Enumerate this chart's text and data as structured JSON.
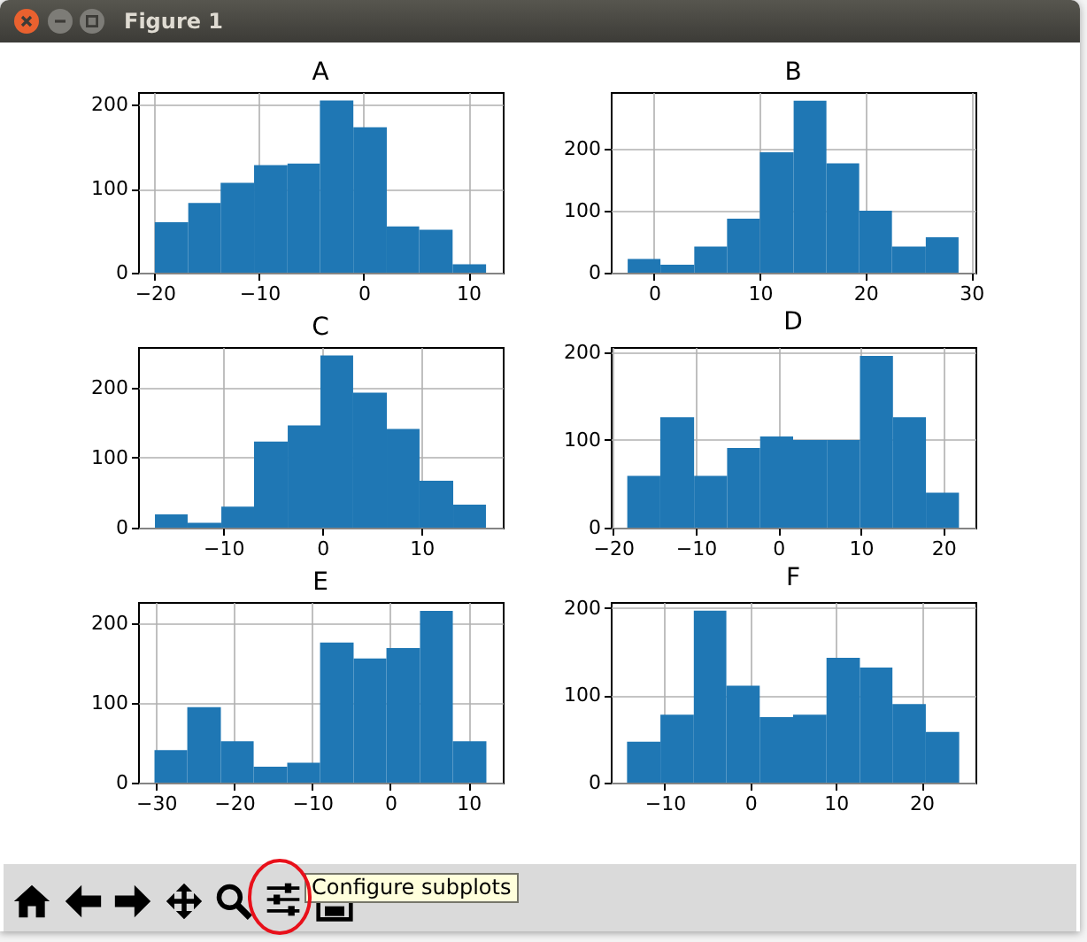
{
  "chart_data": [
    {
      "type": "histogram",
      "title": "A",
      "bins": [
        -20,
        -16.8,
        -13.7,
        -10.5,
        -7.3,
        -4.2,
        -1.0,
        2.2,
        5.3,
        8.5,
        11.7
      ],
      "values": [
        60,
        83,
        107,
        128,
        130,
        205,
        173,
        55,
        51,
        10
      ],
      "color": "#1f77b4",
      "xlim": [
        -21.6,
        13.3
      ],
      "ylim": [
        0,
        215
      ],
      "xticks": [
        {
          "value": -20,
          "label": "−20"
        },
        {
          "value": -10,
          "label": "−10"
        },
        0,
        10
      ],
      "yticks": [
        0,
        100,
        200
      ],
      "grid": true
    },
    {
      "type": "histogram",
      "title": "B",
      "bins": [
        -2.5,
        0.6,
        3.8,
        6.9,
        10.0,
        13.2,
        16.3,
        19.4,
        22.5,
        25.7,
        28.8
      ],
      "values": [
        22,
        13,
        42,
        87,
        194,
        277,
        176,
        100,
        42,
        57
      ],
      "color": "#1f77b4",
      "xlim": [
        -4.1,
        30.4
      ],
      "ylim": [
        0,
        291
      ],
      "xticks": [
        0,
        10,
        20,
        30
      ],
      "yticks": [
        0,
        100,
        200
      ],
      "grid": true
    },
    {
      "type": "histogram",
      "title": "C",
      "bins": [
        -16.9,
        -13.6,
        -10.2,
        -6.9,
        -3.5,
        -0.2,
        3.1,
        6.5,
        9.8,
        13.2,
        16.5
      ],
      "values": [
        19,
        7,
        30,
        123,
        146,
        246,
        193,
        141,
        67,
        33
      ],
      "color": "#1f77b4",
      "xlim": [
        -18.6,
        18.2
      ],
      "ylim": [
        0,
        258
      ],
      "xticks": [
        {
          "value": -10,
          "label": "−10"
        },
        0,
        10
      ],
      "yticks": [
        0,
        100,
        200
      ],
      "grid": true
    },
    {
      "type": "histogram",
      "title": "D",
      "bins": [
        -18.3,
        -14.3,
        -10.2,
        -6.2,
        -2.2,
        1.8,
        5.9,
        9.9,
        13.9,
        17.9,
        21.9
      ],
      "values": [
        59,
        126,
        59,
        91,
        104,
        100,
        100,
        196,
        126,
        40
      ],
      "color": "#1f77b4",
      "xlim": [
        -20.3,
        23.9
      ],
      "ylim": [
        0,
        206
      ],
      "xticks": [
        {
          "value": -20,
          "label": "−20"
        },
        {
          "value": -10,
          "label": "−10"
        },
        0,
        10,
        20
      ],
      "yticks": [
        0,
        100,
        200
      ],
      "grid": true
    },
    {
      "type": "histogram",
      "title": "E",
      "bins": [
        -30.2,
        -26.0,
        -21.7,
        -17.5,
        -13.2,
        -9.0,
        -4.7,
        -0.5,
        3.8,
        8.0,
        12.3
      ],
      "values": [
        41,
        95,
        52,
        20,
        25,
        176,
        156,
        169,
        216,
        52
      ],
      "color": "#1f77b4",
      "xlim": [
        -32.3,
        14.4
      ],
      "ylim": [
        0,
        227
      ],
      "xticks": [
        {
          "value": -30,
          "label": "−30"
        },
        {
          "value": -20,
          "label": "−20"
        },
        {
          "value": -10,
          "label": "−10"
        },
        0,
        10
      ],
      "yticks": [
        0,
        100,
        200
      ],
      "grid": true
    },
    {
      "type": "histogram",
      "title": "F",
      "bins": [
        -14.4,
        -10.5,
        -6.6,
        -2.8,
        1.1,
        5.0,
        8.9,
        12.8,
        16.6,
        20.5,
        24.4
      ],
      "values": [
        47,
        78,
        197,
        111,
        75,
        78,
        143,
        132,
        90,
        58
      ],
      "color": "#1f77b4",
      "xlim": [
        -16.3,
        26.3
      ],
      "ylim": [
        0,
        207
      ],
      "xticks": [
        {
          "value": -10,
          "label": "−10"
        },
        0,
        10,
        20
      ],
      "yticks": [
        0,
        100,
        200
      ],
      "grid": true
    },
    {
      "type": "other",
      "annotations": [
        "Figure 1",
        "Configure subplots"
      ]
    }
  ]
}
